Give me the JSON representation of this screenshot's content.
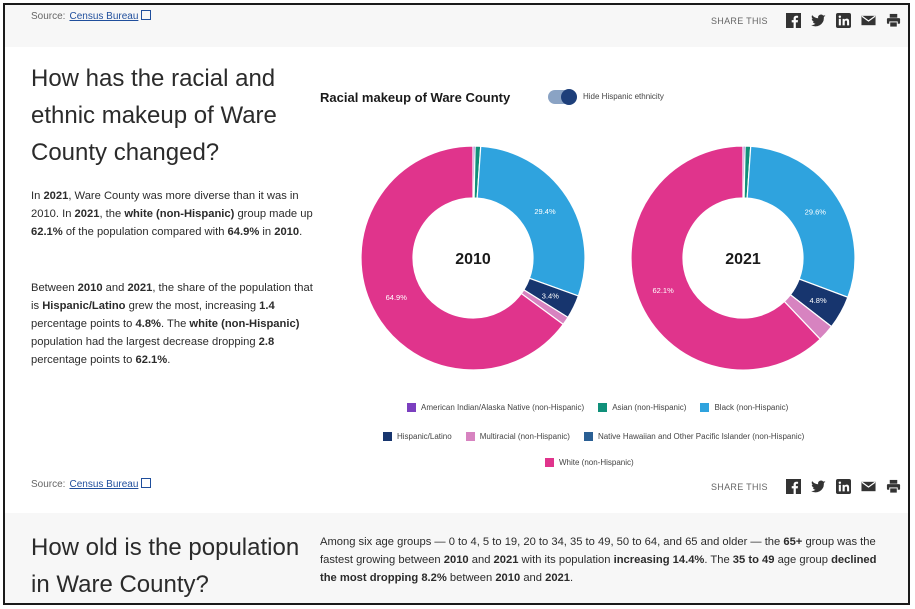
{
  "top": {
    "source_label": "Source:",
    "source_link": "Census Bureau",
    "share_label": "SHARE THIS"
  },
  "section1": {
    "heading": "How has the racial and ethnic makeup of Ware County changed?",
    "para1": [
      {
        "t": "In "
      },
      {
        "t": "2021",
        "b": true
      },
      {
        "t": ", Ware County was more diverse than it was in 2010. In "
      },
      {
        "t": "2021",
        "b": true
      },
      {
        "t": ", the "
      },
      {
        "t": "white (non-Hispanic)",
        "b": true
      },
      {
        "t": " group made up "
      },
      {
        "t": "62.1%",
        "b": true
      },
      {
        "t": " of the population compared with "
      },
      {
        "t": "64.9%",
        "b": true
      },
      {
        "t": " in "
      },
      {
        "t": "2010",
        "b": true
      },
      {
        "t": "."
      }
    ],
    "para2": [
      {
        "t": "Between "
      },
      {
        "t": "2010",
        "b": true
      },
      {
        "t": " and "
      },
      {
        "t": "2021",
        "b": true
      },
      {
        "t": ", the share of the population that is "
      },
      {
        "t": "Hispanic/Latino",
        "b": true
      },
      {
        "t": " grew the most, increasing "
      },
      {
        "t": "1.4",
        "b": true
      },
      {
        "t": " percentage points to "
      },
      {
        "t": "4.8%",
        "b": true
      },
      {
        "t": ". The "
      },
      {
        "t": "white (non-Hispanic)",
        "b": true
      },
      {
        "t": " population had the largest decrease dropping "
      },
      {
        "t": "2.8",
        "b": true
      },
      {
        "t": " percentage points to "
      },
      {
        "t": "62.1%",
        "b": true
      },
      {
        "t": "."
      }
    ]
  },
  "chart_controls": {
    "toggle_label": "Hide Hispanic ethnicity",
    "toggle_on": true
  },
  "chart_data": {
    "type": "pie",
    "title": "Racial makeup of Ware County",
    "categories": [
      "American Indian/Alaska Native (non-Hispanic)",
      "Asian (non-Hispanic)",
      "Black (non-Hispanic)",
      "Hispanic/Latino",
      "Multiracial (non-Hispanic)",
      "Native Hawaiian and Other Pacific Islander (non-Hispanic)",
      "White (non-Hispanic)"
    ],
    "colors": [
      "#7b3fbf",
      "#10907a",
      "#2fa3de",
      "#17356e",
      "#d783c0",
      "#2a5f94",
      "#e0348c"
    ],
    "series": [
      {
        "name": "2010",
        "values": [
          0.3,
          0.8,
          29.4,
          3.4,
          1.2,
          0.0,
          64.9
        ],
        "labels": [
          "",
          "",
          "29.4%",
          "3.4%",
          "",
          "",
          "64.9%"
        ]
      },
      {
        "name": "2021",
        "values": [
          0.3,
          0.8,
          29.6,
          4.8,
          2.4,
          0.0,
          62.1
        ],
        "labels": [
          "",
          "",
          "29.6%",
          "4.8%",
          "",
          "",
          "62.1%"
        ]
      }
    ],
    "legend_position": "bottom"
  },
  "section2": {
    "heading": "How old is the population in Ware County?",
    "para": [
      {
        "t": "Among six age groups — 0 to 4, 5 to 19, 20 to 34, 35 to 49, 50 to 64, and 65 and older — the "
      },
      {
        "t": "65+",
        "b": true
      },
      {
        "t": " group was the fastest growing between "
      },
      {
        "t": "2010",
        "b": true
      },
      {
        "t": " and "
      },
      {
        "t": "2021",
        "b": true
      },
      {
        "t": " with its population "
      },
      {
        "t": "increasing 14.4%",
        "b": true
      },
      {
        "t": ". The "
      },
      {
        "t": "35 to 49",
        "b": true
      },
      {
        "t": " age group "
      },
      {
        "t": "declined the most dropping",
        "b": true
      },
      {
        "t": " "
      },
      {
        "t": "8.2%",
        "b": true
      },
      {
        "t": " between "
      },
      {
        "t": "2010",
        "b": true
      },
      {
        "t": " and "
      },
      {
        "t": "2021",
        "b": true
      },
      {
        "t": "."
      }
    ]
  },
  "icons": [
    "facebook-icon",
    "twitter-icon",
    "linkedin-icon",
    "email-icon",
    "print-icon",
    "external-link-icon"
  ]
}
